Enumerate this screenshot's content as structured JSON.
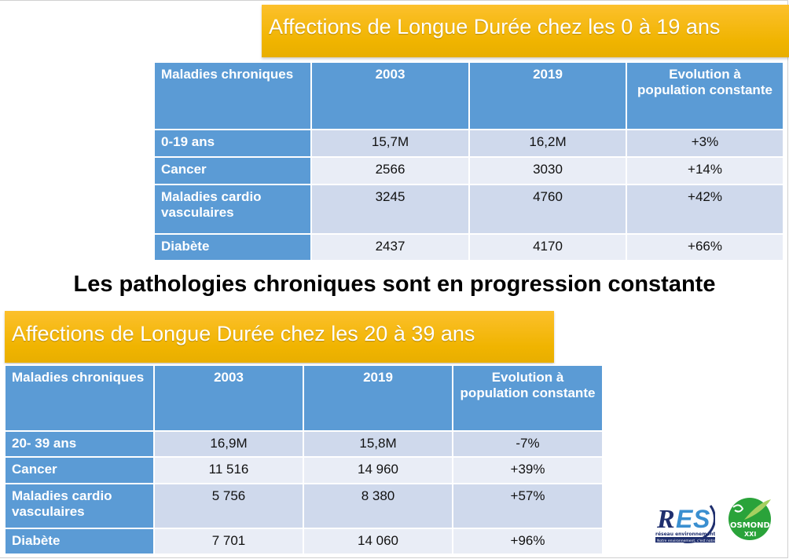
{
  "top": {
    "title": "Affections de Longue Durée chez les 0 à 19 ans",
    "headers": [
      "Maladies chroniques",
      "2003",
      "2019",
      "Evolution à population constante"
    ],
    "rows": [
      [
        "0-19 ans",
        "15,7M",
        "16,2M",
        "+3%"
      ],
      [
        "Cancer",
        "2566",
        "3030",
        "+14%"
      ],
      [
        "Maladies cardio vasculaires",
        "3245",
        "4760",
        "+42%"
      ],
      [
        "Diabète",
        "2437",
        "4170",
        "+66%"
      ]
    ]
  },
  "headline": "Les pathologies chroniques sont en progression constante",
  "bottom": {
    "title": "Affections de Longue Durée chez les 20 à 39 ans",
    "headers": [
      "Maladies chroniques",
      "2003",
      "2019",
      "Evolution à population constante"
    ],
    "rows": [
      [
        "20- 39 ans",
        "16,9M",
        "15,8M",
        "-7%"
      ],
      [
        "Cancer",
        "11 516",
        "14 960",
        "+39%"
      ],
      [
        "Maladies cardio vasculaires",
        "5 756",
        "8 380",
        "+57%"
      ],
      [
        "Diabète",
        "7 701",
        "14 060",
        "+96%"
      ]
    ]
  },
  "logos": {
    "res": "RES",
    "res_sub": "réseau environnement santé",
    "res_tag": "Notre environnement, c'est notre santé",
    "osmonde": "OSMONDE",
    "osmonde_sub": "XXI"
  },
  "colors": {
    "header": "#5b9bd5",
    "row_odd": "#cfd9ec",
    "row_even": "#e9edf6",
    "title": "#f0b400"
  }
}
